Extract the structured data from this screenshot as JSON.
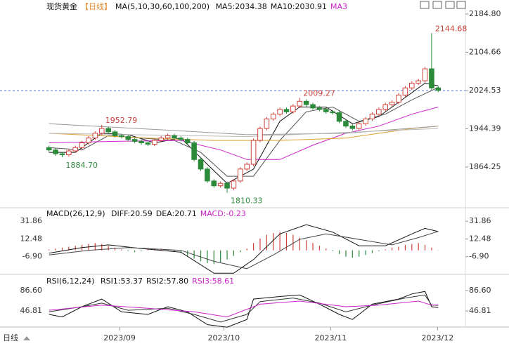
{
  "period_tab": "日线",
  "chart_data": [
    {
      "type": "candlestick",
      "title": "现货黄金",
      "period": "【日线】",
      "indicator": "MA(5,10,30,60,100,200)",
      "legend": [
        {
          "label": "MA5:2034.38",
          "color": "#111111"
        },
        {
          "label": "MA10:2030.91",
          "color": "#111111"
        },
        {
          "label": "MA3",
          "color": "#cc22cc"
        }
      ],
      "up_color": "#d0413a",
      "down_color": "#2a8a3a",
      "xlim": [
        -0.5,
        59.5
      ],
      "ylim": [
        1780.4,
        2214.2
      ],
      "yticks": [
        {
          "value": 2184.8,
          "label": "2184.80"
        },
        2104.66,
        2024.53,
        1944.39,
        1864.25
      ],
      "reference_line": 2024.53,
      "opens": [
        1905,
        1900,
        1892,
        1890,
        1898,
        1905,
        1915,
        1925,
        1935,
        1945,
        1938,
        1930,
        1928,
        1922,
        1918,
        1915,
        1912,
        1920,
        1925,
        1930,
        1925,
        1922,
        1915,
        1880,
        1860,
        1835,
        1825,
        1830,
        1820,
        1835,
        1860,
        1870,
        1920,
        1945,
        1965,
        1975,
        1985,
        1980,
        1992,
        2002,
        1995,
        1988,
        1985,
        1980,
        1978,
        1960,
        1950,
        1945,
        1955,
        1965,
        1975,
        1985,
        1995,
        2000,
        2015,
        2030,
        2040,
        2045,
        2070,
        2030
      ],
      "highs": [
        1909,
        1904,
        1896,
        1902,
        1909,
        1919,
        1929,
        1939,
        1952.79,
        1949,
        1942,
        1934,
        1932,
        1926,
        1922,
        1919,
        1924,
        1929,
        1934,
        1934,
        1929,
        1926,
        1919,
        1884,
        1864,
        1839,
        1834,
        1834,
        1839,
        1864,
        1874,
        1924,
        1949,
        1969,
        1979,
        1989,
        1989,
        1996,
        2009.27,
        2006,
        1999,
        1992,
        1989,
        1984,
        1982,
        1964,
        1954,
        1959,
        1969,
        1979,
        1989,
        1999,
        2004,
        2019,
        2034,
        2044,
        2049,
        2074,
        2144.68,
        2034
      ],
      "lows": [
        1896,
        1888,
        1884.7,
        1886,
        1894,
        1901,
        1911,
        1921,
        1931,
        1934,
        1926,
        1924,
        1918,
        1914,
        1911,
        1908,
        1908,
        1916,
        1921,
        1921,
        1918,
        1911,
        1876,
        1856,
        1831,
        1821,
        1821,
        1810.33,
        1816,
        1831,
        1856,
        1866,
        1916,
        1941,
        1961,
        1971,
        1976,
        1976,
        1988,
        1991,
        1984,
        1981,
        1976,
        1974,
        1956,
        1946,
        1941,
        1941,
        1951,
        1961,
        1971,
        1981,
        1991,
        1996,
        2011,
        2026,
        2036,
        2041,
        2026,
        2021
      ],
      "closes": [
        1900,
        1892,
        1890,
        1898,
        1905,
        1915,
        1925,
        1935,
        1945,
        1938,
        1930,
        1928,
        1922,
        1918,
        1915,
        1912,
        1920,
        1925,
        1930,
        1925,
        1922,
        1915,
        1880,
        1860,
        1835,
        1825,
        1830,
        1820,
        1835,
        1860,
        1870,
        1920,
        1945,
        1965,
        1975,
        1985,
        1980,
        1992,
        2002,
        1995,
        1988,
        1985,
        1980,
        1978,
        1960,
        1950,
        1945,
        1955,
        1965,
        1975,
        1985,
        1995,
        2000,
        2015,
        2030,
        2040,
        2045,
        2070,
        2030,
        2025
      ],
      "series": [
        {
          "color": "#111111",
          "x": [
            0,
            4,
            8,
            12,
            16,
            20,
            24,
            27,
            31,
            35,
            38,
            42,
            46,
            50,
            54,
            57,
            59
          ],
          "values": [
            1895,
            1895,
            1935,
            1932,
            1915,
            1925,
            1870,
            1830,
            1860,
            1960,
            1990,
            1990,
            1955,
            1970,
            2010,
            2040,
            2034.38
          ]
        },
        {
          "color": "#555555",
          "x": [
            0,
            5,
            9,
            14,
            19,
            23,
            27,
            31,
            35,
            39,
            43,
            47,
            51,
            55,
            59
          ],
          "values": [
            1905,
            1900,
            1930,
            1925,
            1920,
            1895,
            1845,
            1845,
            1920,
            1980,
            1990,
            1960,
            1975,
            2005,
            2030.91
          ]
        },
        {
          "color": "#cc22cc",
          "x": [
            0,
            10,
            20,
            26,
            30,
            35,
            40,
            45,
            50,
            55,
            59
          ],
          "values": [
            1915,
            1918,
            1920,
            1900,
            1880,
            1880,
            1910,
            1935,
            1950,
            1975,
            1990
          ]
        },
        {
          "color": "#e0a030",
          "x": [
            0,
            15,
            25,
            35,
            45,
            55,
            59
          ],
          "values": [
            1935,
            1925,
            1920,
            1920,
            1925,
            1945,
            1950
          ]
        },
        {
          "color": "#999999",
          "x": [
            0,
            20,
            30,
            45,
            59
          ],
          "values": [
            1955,
            1940,
            1932,
            1935,
            1950
          ]
        },
        {
          "color": "#bbbbbb",
          "x": [
            0,
            30,
            59
          ],
          "values": [
            1935,
            1928,
            1945
          ]
        }
      ],
      "annotations": [
        {
          "label": "2144.68",
          "value": 2144.68,
          "x": 58,
          "kind": "high"
        },
        {
          "label": "2009.27",
          "value": 2009.27,
          "x": 38,
          "kind": "high"
        },
        {
          "label": "1952.79",
          "value": 1952.79,
          "x": 8,
          "kind": "high"
        },
        {
          "label": "1884.70",
          "value": 1884.7,
          "x": 2,
          "kind": "low"
        },
        {
          "label": "1810.33",
          "value": 1810.33,
          "x": 27,
          "kind": "low"
        }
      ]
    },
    {
      "type": "macd",
      "indicator": "MACD(26,12,9)",
      "legend": [
        {
          "label": "DIFF:20.59",
          "color": "#111111"
        },
        {
          "label": "DEA:20.71",
          "color": "#111111"
        },
        {
          "label": "MACD:-0.23",
          "color": "#cc22cc"
        }
      ],
      "up_color": "#d0413a",
      "down_color": "#2a8a3a",
      "xlim": [
        -0.5,
        59.5
      ],
      "ylim": [
        -25.5,
        45.8
      ],
      "yticks": [
        31.86,
        12.48,
        {
          "value": -6.9,
          "label": "-6.90"
        }
      ],
      "values": [
        1,
        2,
        3,
        4,
        5,
        6,
        7,
        8,
        7,
        5,
        3,
        1,
        -1,
        -2,
        -1,
        1,
        2,
        2,
        1,
        -1,
        -3,
        -6,
        -9,
        -12,
        -14,
        -15,
        -13,
        -10,
        -6,
        -2,
        2,
        8,
        13,
        17,
        19,
        20,
        19,
        17,
        14,
        11,
        8,
        5,
        2,
        -1,
        -4,
        -7,
        -8,
        -7,
        -5,
        -3,
        -1,
        1,
        3,
        4,
        6,
        7,
        8,
        6,
        3,
        -0.23
      ],
      "series": [
        {
          "color": "#111111",
          "x": [
            0,
            5,
            9,
            14,
            20,
            25,
            28,
            31,
            35,
            39,
            43,
            47,
            51,
            55,
            57,
            59
          ],
          "values": [
            -3,
            3,
            6,
            2,
            -2,
            -25,
            -25,
            -10,
            18,
            28,
            20,
            5,
            5,
            18,
            24,
            20.59
          ]
        },
        {
          "color": "#444444",
          "x": [
            0,
            6,
            12,
            20,
            25,
            30,
            34,
            38,
            42,
            47,
            52,
            56,
            59
          ],
          "values": [
            -5,
            0,
            3,
            0,
            -12,
            -20,
            -5,
            12,
            18,
            12,
            6,
            14,
            20.71
          ]
        }
      ]
    },
    {
      "type": "line",
      "indicator": "RSI(6,12,24)",
      "legend": [
        {
          "label": "RSI1:53.37",
          "color": "#111111"
        },
        {
          "label": "RSI2:57.80",
          "color": "#111111"
        },
        {
          "label": "RSI3:58.61",
          "color": "#cc22cc"
        }
      ],
      "xlim": [
        -0.5,
        59.5
      ],
      "ylim": [
        16.6,
        116.8
      ],
      "yticks": [
        {
          "value": 86.6,
          "label": "86.60"
        },
        46.81
      ],
      "xticks": [
        {
          "value": 10.7,
          "label": "2023/09"
        },
        {
          "value": 26.5,
          "label": "2023/10"
        },
        {
          "value": 42.7,
          "label": "2023/11"
        },
        {
          "value": 58.9,
          "label": "2023/12"
        }
      ],
      "series": [
        {
          "color": "#111111",
          "x": [
            0,
            2,
            5,
            8,
            11,
            15,
            18,
            21,
            24,
            27,
            30,
            31,
            35,
            38,
            41,
            44,
            46,
            49,
            53,
            55,
            57,
            58,
            59
          ],
          "values": [
            40,
            35,
            55,
            70,
            45,
            40,
            55,
            45,
            20,
            15,
            30,
            70,
            75,
            78,
            60,
            40,
            30,
            60,
            70,
            80,
            85,
            55,
            53.37
          ]
        },
        {
          "color": "#333333",
          "x": [
            0,
            5,
            8,
            12,
            18,
            22,
            26,
            30,
            32,
            37,
            41,
            45,
            49,
            54,
            57,
            58,
            59
          ],
          "values": [
            45,
            55,
            62,
            48,
            52,
            40,
            25,
            40,
            65,
            72,
            62,
            45,
            58,
            72,
            78,
            58,
            57.8
          ]
        },
        {
          "color": "#cc22cc",
          "x": [
            0,
            8,
            15,
            22,
            27,
            32,
            38,
            45,
            50,
            56,
            58,
            59
          ],
          "values": [
            48,
            58,
            52,
            45,
            35,
            60,
            66,
            55,
            58,
            66,
            58,
            58.61
          ]
        }
      ]
    }
  ]
}
